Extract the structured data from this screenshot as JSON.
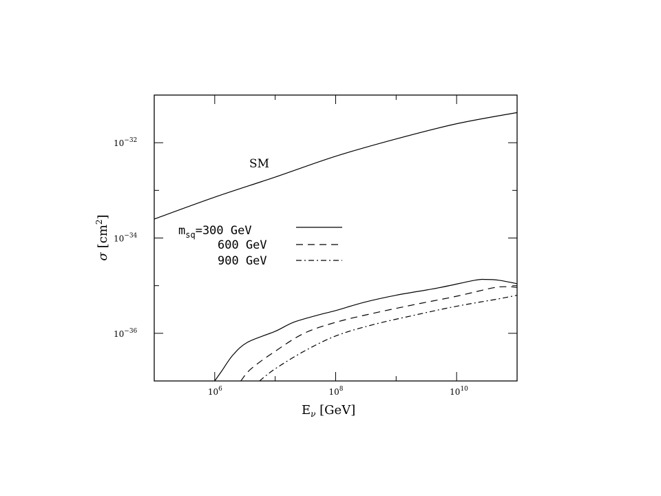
{
  "chart_data": {
    "type": "line",
    "xlabel": {
      "base": "E",
      "sub": "ν",
      "unit": " [GeV]"
    },
    "ylabel": {
      "symbol": "σ",
      "unit": "[cm",
      "unit_exp": "2",
      "unit_close": "]"
    },
    "x_scale": "log",
    "y_scale": "log",
    "xlim": [
      100000,
      100000000000
    ],
    "ylim": [
      1e-37,
      1e-31
    ],
    "x_ticks": [
      {
        "value": 1000000,
        "base": "10",
        "exp": "6"
      },
      {
        "value": 100000000,
        "base": "10",
        "exp": "8"
      },
      {
        "value": 10000000000,
        "base": "10",
        "exp": "10"
      }
    ],
    "y_ticks": [
      {
        "value": 1e-32,
        "base": "10",
        "exp": "−32"
      },
      {
        "value": 1e-34,
        "base": "10",
        "exp": "−34"
      },
      {
        "value": 1e-36,
        "base": "10",
        "exp": "−36"
      }
    ],
    "annotation": {
      "text": "SM"
    },
    "legend": [
      {
        "prefix": "m",
        "sub": "sq",
        "text": "=300 GeV",
        "style": "solid"
      },
      {
        "text": "600 GeV",
        "style": "dashed"
      },
      {
        "text": "900 GeV",
        "style": "dashdot"
      }
    ],
    "series": [
      {
        "style": "solid",
        "x": [
          100000,
          1000000,
          10000000,
          100000000,
          1000000000,
          10000000000,
          100000000000
        ],
        "y": [
          2.5e-34,
          7.2e-34,
          1.9e-33,
          5.2e-33,
          1.2e-32,
          2.5e-32,
          4.3e-32
        ]
      },
      {
        "style": "solid",
        "x": [
          1000000,
          1300000,
          2000000,
          3500000,
          10000000,
          20000000,
          50000000,
          100000000,
          300000000,
          1000000000,
          5000000000,
          20000000000,
          30000000000,
          50000000000,
          100000000000
        ],
        "y": [
          1e-37,
          1.6e-37,
          3.5e-37,
          6.5e-37,
          1.1e-36,
          1.7e-36,
          2.4e-36,
          3e-36,
          4.5e-36,
          6.3e-36,
          9e-36,
          1.3e-35,
          1.35e-35,
          1.3e-35,
          1.1e-35
        ]
      },
      {
        "style": "dashed",
        "x": [
          2700000,
          4000000,
          10000000,
          30000000,
          100000000,
          400000000,
          2000000000,
          10000000000,
          40000000000,
          70000000000,
          100000000000
        ],
        "y": [
          1e-37,
          1.8e-37,
          4.2e-37,
          1e-36,
          1.7e-36,
          2.6e-36,
          4e-36,
          6e-36,
          9e-36,
          9.5e-36,
          9.2e-36
        ]
      },
      {
        "style": "dashdot",
        "x": [
          5500000,
          10000000,
          30000000,
          100000000,
          400000000,
          2000000000,
          10000000000,
          50000000000,
          100000000000
        ],
        "y": [
          1e-37,
          1.8e-37,
          4.2e-37,
          8.8e-37,
          1.5e-36,
          2.4e-36,
          3.7e-36,
          5.3e-36,
          6.3e-36
        ]
      }
    ]
  }
}
